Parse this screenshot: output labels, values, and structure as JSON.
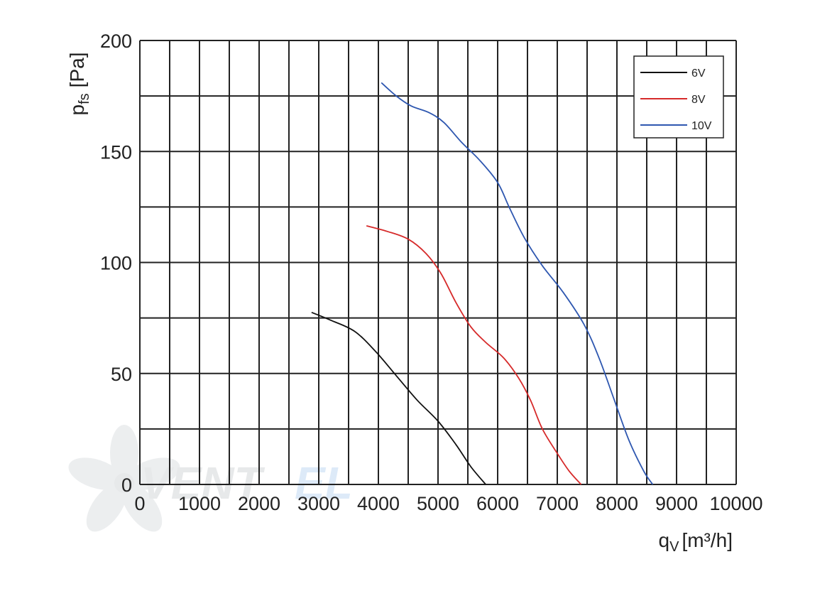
{
  "watermark": {
    "brand_a": "VENT",
    "brand_b": "EL",
    "icon": "fan-blade-icon"
  },
  "chart_data": {
    "type": "line",
    "title": "",
    "xlabel": "q",
    "xlabel_sub": "V",
    "xlabel_unit": "[m³/h]",
    "ylabel": "p",
    "ylabel_sub": "fs",
    "ylabel_unit": "[Pa]",
    "xlim": [
      0,
      10000
    ],
    "ylim": [
      0,
      200
    ],
    "x_ticks": [
      0,
      1000,
      2000,
      3000,
      4000,
      5000,
      6000,
      7000,
      8000,
      9000,
      10000
    ],
    "y_ticks": [
      0,
      50,
      100,
      150,
      200
    ],
    "x_grid_step": 500,
    "y_grid_step": 25,
    "grid": true,
    "legend_position": "top-right",
    "series": [
      {
        "name": "6V",
        "color": "#111111",
        "points": [
          [
            2880,
            77.5
          ],
          [
            3200,
            74
          ],
          [
            3600,
            69
          ],
          [
            3950,
            60
          ],
          [
            4300,
            49
          ],
          [
            4650,
            38
          ],
          [
            5000,
            28.5
          ],
          [
            5300,
            18
          ],
          [
            5550,
            8
          ],
          [
            5800,
            0
          ]
        ]
      },
      {
        "name": "8V",
        "color": "#d62a2a",
        "points": [
          [
            3800,
            116.5
          ],
          [
            4150,
            114
          ],
          [
            4500,
            110.5
          ],
          [
            4800,
            104
          ],
          [
            5050,
            95
          ],
          [
            5300,
            82
          ],
          [
            5550,
            71
          ],
          [
            5800,
            64
          ],
          [
            6100,
            57
          ],
          [
            6350,
            48
          ],
          [
            6550,
            38
          ],
          [
            6750,
            25
          ],
          [
            7000,
            14
          ],
          [
            7200,
            6
          ],
          [
            7400,
            0
          ]
        ]
      },
      {
        "name": "10V",
        "color": "#2e57b0",
        "points": [
          [
            4050,
            181
          ],
          [
            4300,
            175
          ],
          [
            4550,
            170.5
          ],
          [
            4850,
            167.5
          ],
          [
            5100,
            163
          ],
          [
            5400,
            154
          ],
          [
            5700,
            146
          ],
          [
            6000,
            136
          ],
          [
            6200,
            124.5
          ],
          [
            6450,
            111
          ],
          [
            6750,
            98.5
          ],
          [
            7100,
            86.5
          ],
          [
            7450,
            72
          ],
          [
            7700,
            57
          ],
          [
            7950,
            38.5
          ],
          [
            8200,
            20
          ],
          [
            8450,
            6
          ],
          [
            8600,
            0
          ]
        ]
      }
    ]
  }
}
